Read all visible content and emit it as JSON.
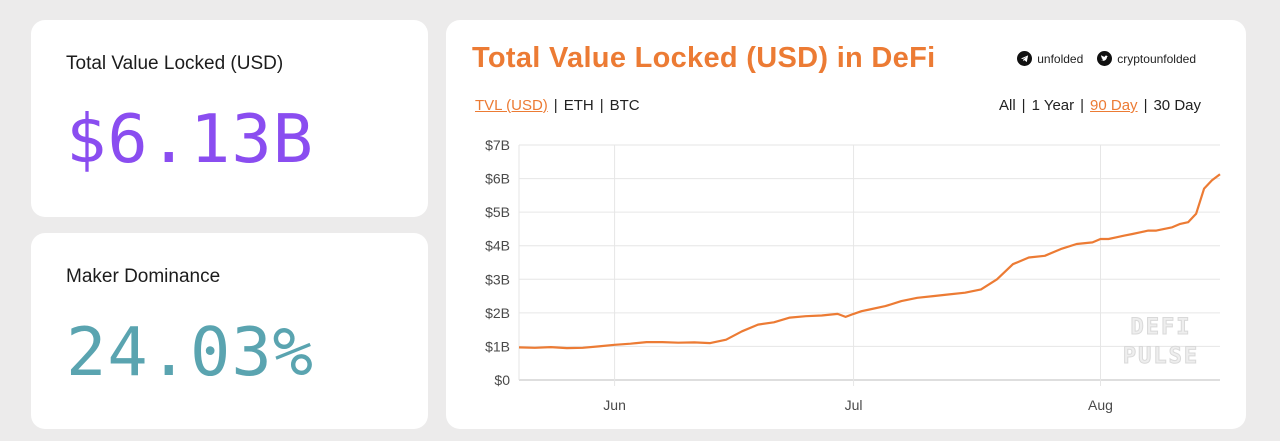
{
  "stats": {
    "tvl": {
      "label": "Total Value Locked (USD)",
      "value": "$6.13B"
    },
    "maker": {
      "label": "Maker Dominance",
      "value": "24.03%"
    }
  },
  "chart_panel": {
    "title": "Total Value Locked (USD) in DeFi",
    "social": {
      "telegram": "unfolded",
      "twitter": "cryptounfolded"
    },
    "units": {
      "tvl": "TVL (USD)",
      "eth": "ETH",
      "btc": "BTC",
      "active": "tvl"
    },
    "ranges": {
      "all": "All",
      "year": "1 Year",
      "d90": "90 Day",
      "d30": "30 Day",
      "active": "d90"
    },
    "watermark": [
      "DEFI",
      "PULSE"
    ]
  },
  "colors": {
    "accent": "#ec7b34",
    "tvl_value": "#8a4df0",
    "maker_value": "#5aa4b0"
  },
  "chart_data": {
    "type": "line",
    "title": "Total Value Locked (USD) in DeFi",
    "xlabel": "",
    "ylabel": "",
    "ylim": [
      0,
      7
    ],
    "y_ticks": [
      "$0",
      "$1B",
      "$2B",
      "$3B",
      "$4B",
      "$5B",
      "$6B",
      "$7B"
    ],
    "x_ticks": [
      "Jun",
      "Jul",
      "Aug"
    ],
    "x_tick_days": [
      12,
      42,
      73
    ],
    "xlim": [
      0,
      88
    ],
    "series": [
      {
        "color": "#ec7b34",
        "x": [
          0,
          2,
          4,
          6,
          8,
          10,
          12,
          14,
          16,
          18,
          20,
          22,
          24,
          26,
          28,
          30,
          32,
          34,
          36,
          38,
          40,
          41,
          42,
          43,
          44,
          46,
          48,
          50,
          52,
          54,
          56,
          58,
          60,
          62,
          64,
          66,
          68,
          70,
          72,
          73,
          74,
          75,
          76,
          77,
          78,
          79,
          80,
          81,
          82,
          83,
          84,
          85,
          86,
          87,
          88
        ],
        "y": [
          0.97,
          0.96,
          0.98,
          0.95,
          0.96,
          1.0,
          1.05,
          1.08,
          1.13,
          1.13,
          1.11,
          1.12,
          1.1,
          1.2,
          1.45,
          1.65,
          1.72,
          1.86,
          1.9,
          1.92,
          1.97,
          1.88,
          1.97,
          2.05,
          2.1,
          2.2,
          2.35,
          2.45,
          2.5,
          2.55,
          2.6,
          2.7,
          3.0,
          3.45,
          3.65,
          3.7,
          3.9,
          4.05,
          4.1,
          4.2,
          4.2,
          4.25,
          4.3,
          4.35,
          4.4,
          4.45,
          4.45,
          4.5,
          4.55,
          4.65,
          4.7,
          4.95,
          5.7,
          5.95,
          6.13
        ]
      }
    ]
  }
}
